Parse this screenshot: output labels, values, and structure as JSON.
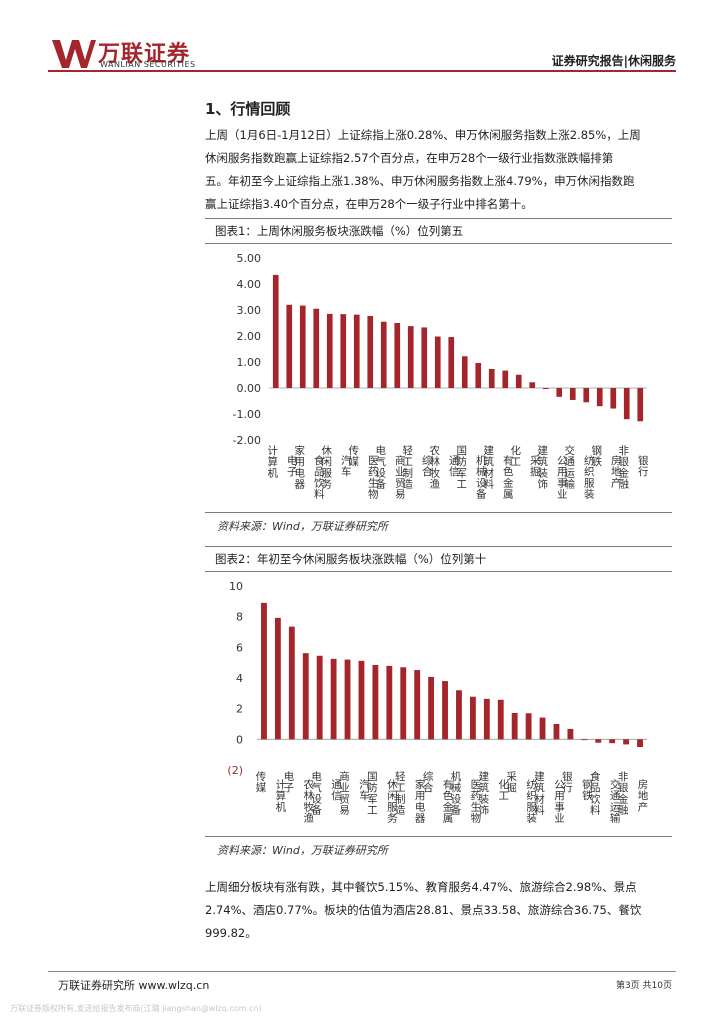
{
  "header": {
    "logo_cn": "万联证券",
    "logo_en": "WANLIAN SECURITIES",
    "report_type": "证券研究报告|休闲服务"
  },
  "section": {
    "title": "1、行情回顾",
    "para1_line1": "上周（1月6日-1月12日）上证综指上涨0.28%、申万休闲服务指数上涨2.85%，上周",
    "para1_line2": "休闲服务指数跑赢上证综指2.57个百分点，在申万28个一级行业指数涨跌幅排第",
    "para1_line3": "五。年初至今上证综指上涨1.38%、申万休闲服务指数上涨4.79%，申万休闲指数跑",
    "para1_line4": "赢上证综指3.40个百分点，在申万28个一级子行业中排名第十。",
    "para2_line1": "上周细分板块有涨有跌，其中餐饮5.15%、教育服务4.47%、旅游综合2.98%、景点",
    "para2_line2": "2.74%、酒店0.77%。板块的估值为酒店28.81、景点33.58、旅游综合36.75、餐饮",
    "para2_line3": "999.82。"
  },
  "figure1": {
    "title": "图表1：上周休闲服务板块涨跌幅（%）位列第五",
    "source": "资料来源：Wind，万联证券研究所"
  },
  "figure2": {
    "title": "图表2：年初至今休闲服务板块涨跌幅（%）位列第十",
    "source": "资料来源：Wind，万联证券研究所"
  },
  "footer": {
    "left": "万联证券研究所 www.wlzq.cn",
    "right": "第3页 共10页",
    "watermark": "万联证券版权所有,发送给报告发布商(江璐 jiangshan@wlzq.com.cn)"
  },
  "colors": {
    "bar": "#a4262c",
    "accent": "#a4262c"
  },
  "chart_data": [
    {
      "type": "bar",
      "title": "",
      "ylim": [
        -2,
        5
      ],
      "yticks": [
        "5.00",
        "4.00",
        "3.00",
        "2.00",
        "1.00",
        "0.00",
        "-1.00",
        "-2.00"
      ],
      "categories": [
        "计算机",
        "电子",
        "家用电器",
        "食品饮料",
        "休闲服务",
        "汽车",
        "传媒",
        "医药生物",
        "电气设备",
        "商业贸易",
        "轻工制造",
        "综合",
        "农林牧渔",
        "通信",
        "国防军工",
        "机械设备",
        "建筑材料",
        "有色金属",
        "化工",
        "采掘",
        "建筑装饰",
        "公用事业",
        "交通运输",
        "纺织服装",
        "钢铁",
        "房地产",
        "非银金融",
        "银行"
      ],
      "values": [
        4.35,
        3.2,
        3.17,
        3.05,
        2.85,
        2.84,
        2.82,
        2.77,
        2.55,
        2.5,
        2.38,
        2.33,
        1.98,
        1.96,
        1.22,
        0.96,
        0.73,
        0.67,
        0.51,
        0.22,
        -0.04,
        -0.34,
        -0.46,
        -0.55,
        -0.7,
        -0.79,
        -1.2,
        -1.28
      ],
      "grid": false,
      "legend": "none"
    },
    {
      "type": "bar",
      "title": "",
      "ylim": [
        -2,
        10
      ],
      "yticks": [
        "10",
        "8",
        "6",
        "4",
        "2",
        "0",
        "(2)"
      ],
      "categories": [
        "传媒",
        "计算机",
        "电子",
        "农林牧渔",
        "电气设备",
        "通信",
        "商业贸易",
        "汽车",
        "国防军工",
        "休闲服务",
        "轻工制造",
        "家用电器",
        "综合",
        "有色金属",
        "机械设备",
        "医药生物",
        "建筑装饰",
        "化工",
        "采掘",
        "纺织服装",
        "建筑材料",
        "公用事业",
        "银行",
        "钢铁",
        "食品饮料",
        "交通运输",
        "非银金融",
        "房地产"
      ],
      "values": [
        8.9,
        7.92,
        7.35,
        5.62,
        5.45,
        5.25,
        5.2,
        5.12,
        4.85,
        4.79,
        4.7,
        4.52,
        4.07,
        3.8,
        3.2,
        2.78,
        2.64,
        2.58,
        1.72,
        1.7,
        1.42,
        1.0,
        0.68,
        -0.05,
        -0.22,
        -0.25,
        -0.33,
        -0.5
      ],
      "grid": false,
      "legend": "none"
    }
  ]
}
